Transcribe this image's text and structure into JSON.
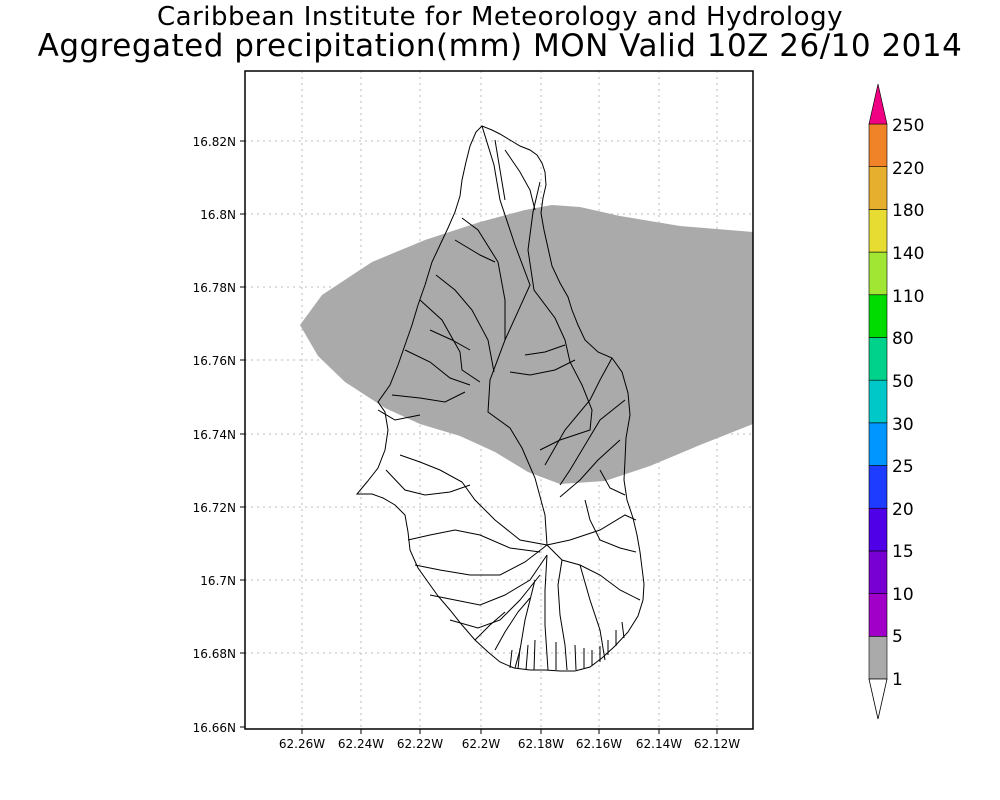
{
  "header": {
    "title": "Caribbean Institute for Meteorology and Hydrology",
    "subtitle": "Aggregated precipitation(mm) MON Valid 10Z 26/10 2014"
  },
  "map": {
    "x_ticks": [
      "62.26W",
      "62.24W",
      "62.22W",
      "62.2W",
      "62.18W",
      "62.16W",
      "62.14W",
      "62.12W"
    ],
    "y_ticks": [
      "16.82N",
      "16.8N",
      "16.78N",
      "16.76N",
      "16.74N",
      "16.72N",
      "16.7N",
      "16.68N",
      "16.66N"
    ],
    "lon_range": [
      -62.279,
      -62.105
    ],
    "lat_range": [
      16.659,
      16.839
    ],
    "precip_area_color": "#aaaaaa",
    "gridlines": "dotted"
  },
  "colorbar": {
    "labels": [
      "1",
      "5",
      "10",
      "15",
      "20",
      "25",
      "30",
      "50",
      "80",
      "110",
      "140",
      "180",
      "220",
      "250"
    ],
    "colors": [
      "#aaaaaa",
      "#a000c8",
      "#7800d2",
      "#5000e6",
      "#1e3cff",
      "#0096ff",
      "#00c8c8",
      "#00d28c",
      "#00dc00",
      "#a0e632",
      "#e6dc32",
      "#e6af2d",
      "#f08228",
      "#fa3c3c",
      "#f00082"
    ],
    "under_color": "#ffffff"
  }
}
